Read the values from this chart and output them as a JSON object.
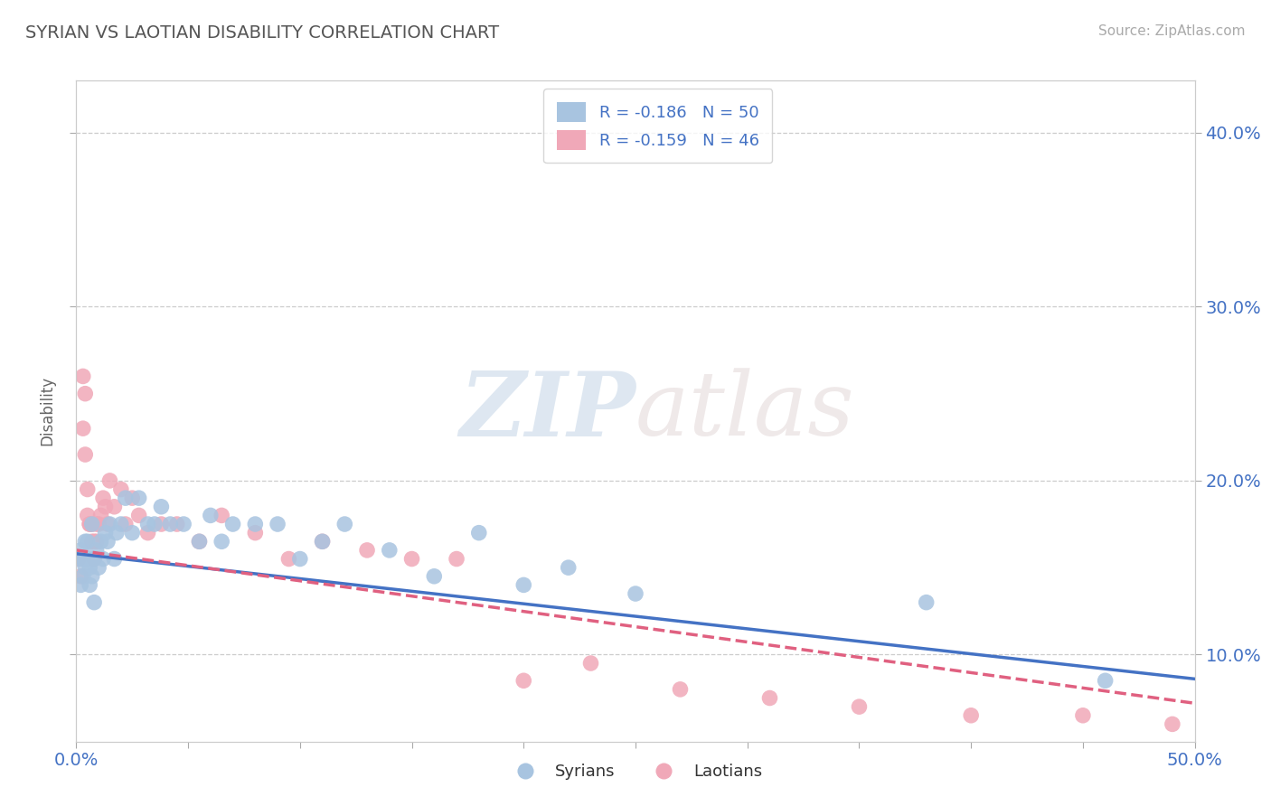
{
  "title": "SYRIAN VS LAOTIAN DISABILITY CORRELATION CHART",
  "source": "Source: ZipAtlas.com",
  "ylabel": "Disability",
  "xlabel": "",
  "xlim": [
    0.0,
    0.5
  ],
  "ylim": [
    0.05,
    0.43
  ],
  "x_ticks": [
    0.0,
    0.05,
    0.1,
    0.15,
    0.2,
    0.25,
    0.3,
    0.35,
    0.4,
    0.45,
    0.5
  ],
  "y_ticks": [
    0.1,
    0.2,
    0.3,
    0.4
  ],
  "y_tick_labels": [
    "10.0%",
    "20.0%",
    "30.0%",
    "40.0%"
  ],
  "grid_color": "#cccccc",
  "background_color": "#ffffff",
  "syrian_color": "#a8c4e0",
  "laotian_color": "#f0a8b8",
  "syrian_line_color": "#4472c4",
  "laotian_line_color": "#e06080",
  "watermark_zip": "ZIP",
  "watermark_atlas": "atlas",
  "legend_label_syrian": "R = -0.186   N = 50",
  "legend_label_laotian": "R = -0.159   N = 46",
  "bottom_legend_syrian": "Syrians",
  "bottom_legend_laotian": "Laotians",
  "syrian_x": [
    0.001,
    0.002,
    0.002,
    0.003,
    0.003,
    0.004,
    0.004,
    0.005,
    0.005,
    0.006,
    0.006,
    0.007,
    0.007,
    0.008,
    0.008,
    0.009,
    0.01,
    0.011,
    0.012,
    0.013,
    0.014,
    0.015,
    0.017,
    0.018,
    0.02,
    0.022,
    0.025,
    0.028,
    0.032,
    0.035,
    0.038,
    0.042,
    0.048,
    0.055,
    0.06,
    0.065,
    0.07,
    0.08,
    0.09,
    0.1,
    0.11,
    0.12,
    0.14,
    0.16,
    0.18,
    0.2,
    0.22,
    0.25,
    0.38,
    0.46
  ],
  "syrian_y": [
    0.155,
    0.14,
    0.16,
    0.145,
    0.155,
    0.15,
    0.165,
    0.155,
    0.165,
    0.14,
    0.15,
    0.145,
    0.175,
    0.13,
    0.155,
    0.16,
    0.15,
    0.165,
    0.155,
    0.17,
    0.165,
    0.175,
    0.155,
    0.17,
    0.175,
    0.19,
    0.17,
    0.19,
    0.175,
    0.175,
    0.185,
    0.175,
    0.175,
    0.165,
    0.18,
    0.165,
    0.175,
    0.175,
    0.175,
    0.155,
    0.165,
    0.175,
    0.16,
    0.145,
    0.17,
    0.14,
    0.15,
    0.135,
    0.13,
    0.085
  ],
  "laotian_x": [
    0.001,
    0.002,
    0.003,
    0.003,
    0.004,
    0.004,
    0.005,
    0.005,
    0.006,
    0.006,
    0.007,
    0.007,
    0.008,
    0.008,
    0.009,
    0.009,
    0.01,
    0.011,
    0.012,
    0.013,
    0.014,
    0.015,
    0.017,
    0.02,
    0.022,
    0.025,
    0.028,
    0.032,
    0.038,
    0.045,
    0.055,
    0.065,
    0.08,
    0.095,
    0.11,
    0.13,
    0.15,
    0.17,
    0.2,
    0.23,
    0.27,
    0.31,
    0.35,
    0.4,
    0.45,
    0.49
  ],
  "laotian_y": [
    0.155,
    0.145,
    0.26,
    0.23,
    0.25,
    0.215,
    0.195,
    0.18,
    0.175,
    0.175,
    0.165,
    0.175,
    0.155,
    0.165,
    0.175,
    0.165,
    0.175,
    0.18,
    0.19,
    0.185,
    0.175,
    0.2,
    0.185,
    0.195,
    0.175,
    0.19,
    0.18,
    0.17,
    0.175,
    0.175,
    0.165,
    0.18,
    0.17,
    0.155,
    0.165,
    0.16,
    0.155,
    0.155,
    0.085,
    0.095,
    0.08,
    0.075,
    0.07,
    0.065,
    0.065,
    0.06
  ],
  "syrian_line_start_y": 0.158,
  "syrian_line_end_y": 0.086,
  "laotian_line_start_y": 0.16,
  "laotian_line_end_y": 0.072
}
